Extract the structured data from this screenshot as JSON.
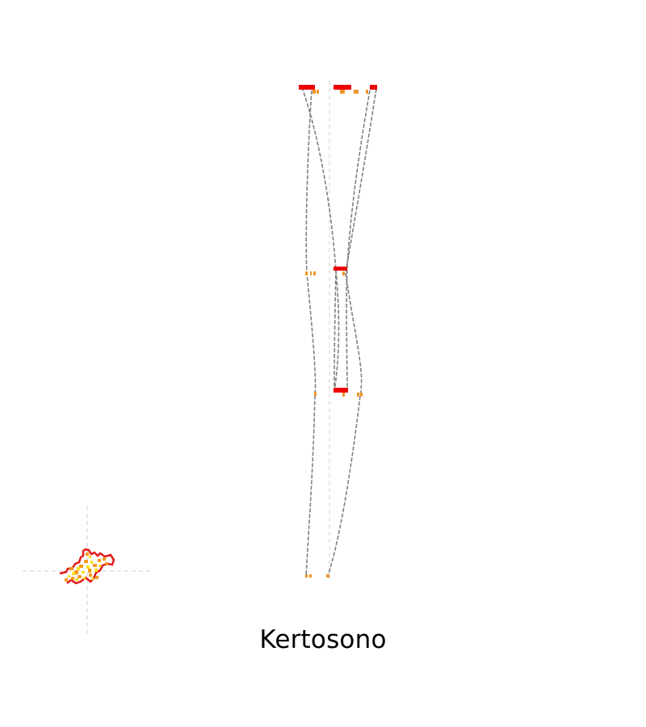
{
  "label": "Kertosono",
  "colors": {
    "axis_line": "#d0d0d0",
    "curve": "#808080",
    "marker_major": "#ee0000",
    "marker_minor": "#f0952a",
    "scatter_dark": "#e21b1b",
    "scatter_mid": "#f39a1e",
    "scatter_light": "#fbe21c"
  }
}
